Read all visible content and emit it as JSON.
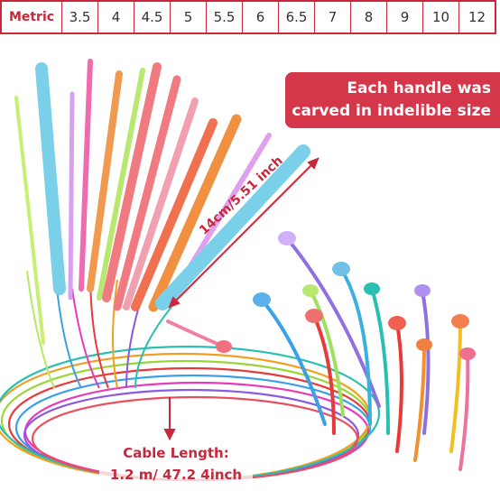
{
  "size_table": {
    "header": "Metric",
    "sizes": [
      "3.5",
      "4",
      "4.5",
      "5",
      "5.5",
      "6",
      "6.5",
      "7",
      "8",
      "9",
      "10",
      "12"
    ]
  },
  "banner": {
    "line1": "Each handle was",
    "line2": "carved in indelible size"
  },
  "handle_length_label": "14cm/5.51 inch",
  "cable_label": {
    "line1": "Cable Length:",
    "line2": "1.2 m/ 47.2 4inch"
  },
  "colors": {
    "accent": "#c8283c",
    "banner": "#d4364a"
  }
}
